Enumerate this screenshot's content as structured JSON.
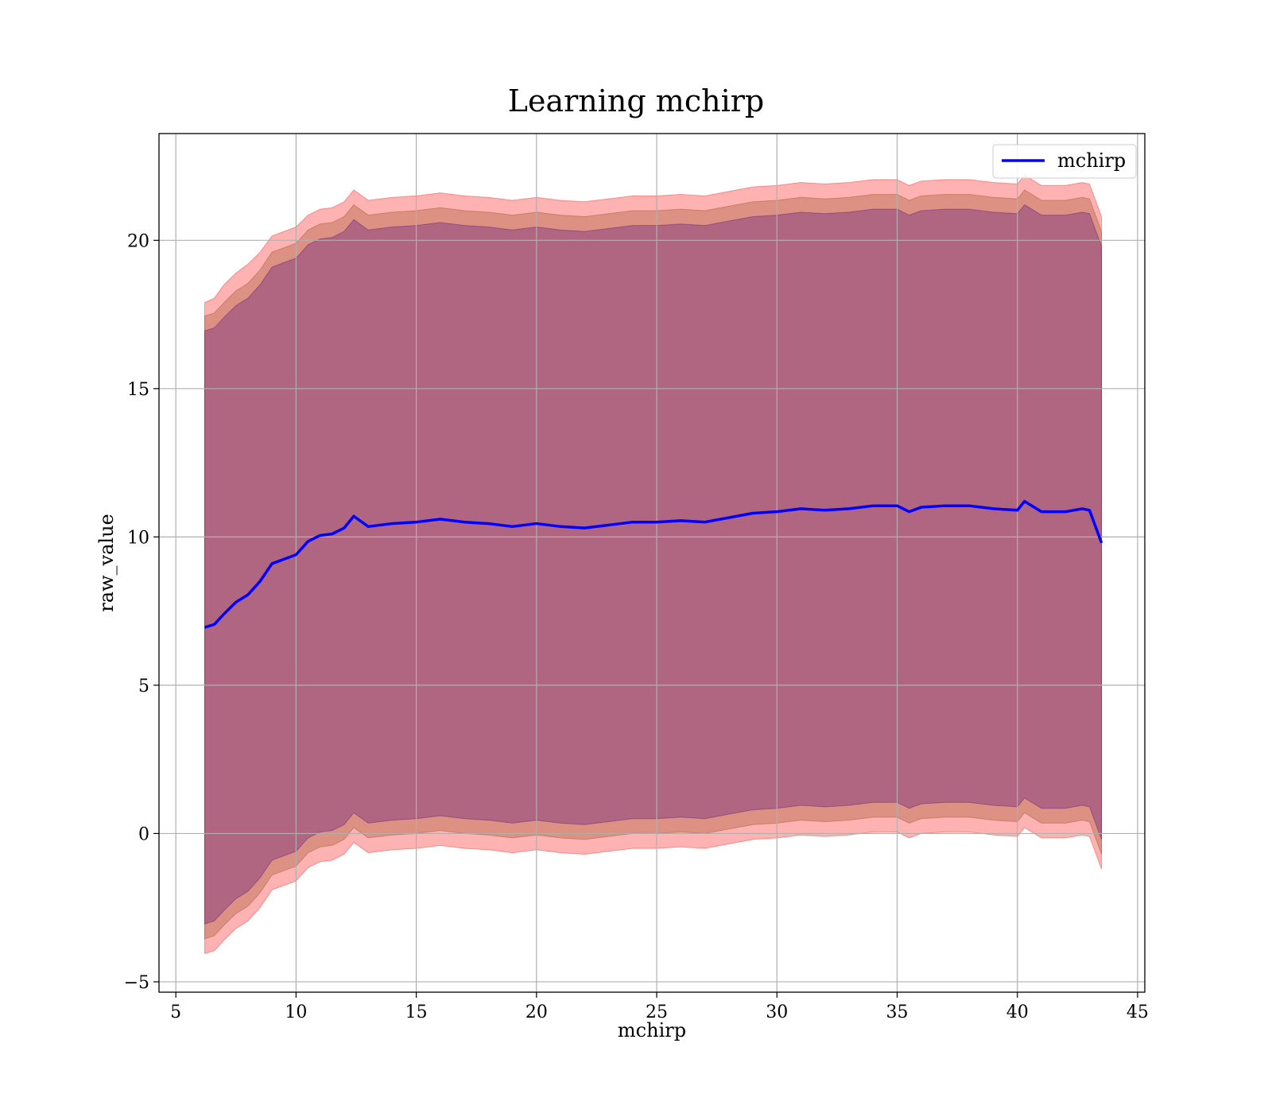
{
  "chart_data": {
    "type": "line",
    "title": "Learning mchirp",
    "xlabel": "mchirp",
    "ylabel": "raw_value",
    "xlim": [
      4.3,
      45.3
    ],
    "ylim": [
      -5.35,
      23.6
    ],
    "x_ticks": [
      5,
      10,
      15,
      20,
      25,
      30,
      35,
      40,
      45
    ],
    "x_tick_labels": [
      "5",
      "10",
      "15",
      "20",
      "25",
      "30",
      "35",
      "40",
      "45"
    ],
    "y_ticks": [
      -5,
      0,
      5,
      10,
      15,
      20
    ],
    "y_tick_labels": [
      "−5",
      "0",
      "5",
      "10",
      "15",
      "20"
    ],
    "grid": true,
    "legend": {
      "position": "top-right",
      "entries": [
        "mchirp"
      ]
    },
    "colors": {
      "line": "#0000ff",
      "band_outer": "#ff0000",
      "band_mid": "#8b4513",
      "band_inner": "#4b0082"
    },
    "series": [
      {
        "name": "mchirp",
        "x": [
          6.2,
          6.6,
          7.0,
          7.5,
          8.0,
          8.5,
          9.0,
          9.5,
          10.0,
          10.5,
          11.0,
          11.5,
          12.0,
          12.4,
          13.0,
          14.0,
          15.0,
          16.0,
          17.0,
          18.0,
          19.0,
          20.0,
          21.0,
          22.0,
          23.0,
          24.0,
          25.0,
          26.0,
          27.0,
          28.0,
          29.0,
          30.0,
          31.0,
          32.0,
          33.0,
          34.0,
          35.0,
          35.5,
          36.0,
          37.0,
          38.0,
          39.0,
          40.0,
          40.3,
          41.0,
          42.0,
          42.7,
          43.0,
          43.5
        ],
        "values": [
          6.95,
          7.05,
          7.4,
          7.8,
          8.05,
          8.5,
          9.1,
          9.25,
          9.4,
          9.85,
          10.05,
          10.1,
          10.3,
          10.7,
          10.35,
          10.45,
          10.5,
          10.6,
          10.5,
          10.45,
          10.35,
          10.45,
          10.35,
          10.3,
          10.4,
          10.5,
          10.5,
          10.55,
          10.5,
          10.65,
          10.8,
          10.85,
          10.95,
          10.9,
          10.95,
          11.05,
          11.05,
          10.85,
          11.0,
          11.05,
          11.05,
          10.95,
          10.9,
          11.2,
          10.85,
          10.85,
          10.95,
          10.9,
          9.8
        ]
      }
    ],
    "bands": [
      {
        "x": [
          6.2,
          6.6,
          7.0,
          7.5,
          8.0,
          8.5,
          9.0,
          9.5,
          10.0,
          10.5,
          11.0,
          11.5,
          12.0,
          12.4,
          13.0,
          14.0,
          15.0,
          16.0,
          17.0,
          18.0,
          19.0,
          20.0,
          21.0,
          22.0,
          23.0,
          24.0,
          25.0,
          26.0,
          27.0,
          28.0,
          29.0,
          30.0,
          31.0,
          32.0,
          33.0,
          34.0,
          35.0,
          35.5,
          36.0,
          37.0,
          38.0,
          39.0,
          40.0,
          40.3,
          41.0,
          42.0,
          42.7,
          43.0,
          43.5
        ],
        "upper": [
          17.9,
          18.05,
          18.5,
          18.9,
          19.2,
          19.6,
          20.15,
          20.3,
          20.45,
          20.85,
          21.05,
          21.1,
          21.3,
          21.7,
          21.35,
          21.45,
          21.5,
          21.6,
          21.5,
          21.45,
          21.35,
          21.45,
          21.35,
          21.3,
          21.4,
          21.5,
          21.5,
          21.55,
          21.5,
          21.65,
          21.8,
          21.85,
          21.95,
          21.9,
          21.95,
          22.05,
          22.05,
          21.85,
          22.0,
          22.05,
          22.05,
          21.95,
          21.9,
          22.2,
          21.85,
          21.85,
          21.95,
          21.9,
          20.8
        ],
        "lower": [
          -4.05,
          -3.95,
          -3.6,
          -3.2,
          -2.95,
          -2.5,
          -1.9,
          -1.75,
          -1.6,
          -1.15,
          -0.95,
          -0.9,
          -0.7,
          -0.3,
          -0.65,
          -0.55,
          -0.5,
          -0.4,
          -0.5,
          -0.55,
          -0.65,
          -0.55,
          -0.65,
          -0.7,
          -0.6,
          -0.5,
          -0.5,
          -0.45,
          -0.5,
          -0.35,
          -0.2,
          -0.15,
          -0.05,
          -0.1,
          -0.05,
          0.05,
          0.05,
          -0.15,
          0.0,
          0.05,
          0.05,
          -0.05,
          -0.1,
          0.2,
          -0.15,
          -0.15,
          -0.05,
          -0.1,
          -1.2
        ]
      },
      {
        "x": [
          6.2,
          6.6,
          7.0,
          7.5,
          8.0,
          8.5,
          9.0,
          9.5,
          10.0,
          10.5,
          11.0,
          11.5,
          12.0,
          12.4,
          13.0,
          14.0,
          15.0,
          16.0,
          17.0,
          18.0,
          19.0,
          20.0,
          21.0,
          22.0,
          23.0,
          24.0,
          25.0,
          26.0,
          27.0,
          28.0,
          29.0,
          30.0,
          31.0,
          32.0,
          33.0,
          34.0,
          35.0,
          35.5,
          36.0,
          37.0,
          38.0,
          39.0,
          40.0,
          40.3,
          41.0,
          42.0,
          42.7,
          43.0,
          43.5
        ],
        "upper": [
          17.45,
          17.55,
          17.9,
          18.3,
          18.55,
          19.0,
          19.6,
          19.75,
          19.9,
          20.35,
          20.55,
          20.6,
          20.8,
          21.2,
          20.85,
          20.95,
          21.0,
          21.1,
          21.0,
          20.95,
          20.85,
          20.95,
          20.85,
          20.8,
          20.9,
          21.0,
          21.0,
          21.05,
          21.0,
          21.15,
          21.3,
          21.35,
          21.45,
          21.4,
          21.45,
          21.55,
          21.55,
          21.35,
          21.5,
          21.55,
          21.55,
          21.45,
          21.4,
          21.7,
          21.35,
          21.35,
          21.45,
          21.4,
          20.3
        ],
        "lower": [
          -3.55,
          -3.45,
          -3.1,
          -2.7,
          -2.45,
          -2.0,
          -1.4,
          -1.25,
          -1.1,
          -0.65,
          -0.45,
          -0.4,
          -0.2,
          0.2,
          -0.15,
          -0.05,
          0.0,
          0.1,
          0.0,
          -0.05,
          -0.15,
          -0.05,
          -0.15,
          -0.2,
          -0.1,
          0.0,
          0.0,
          0.05,
          0.0,
          0.15,
          0.3,
          0.35,
          0.45,
          0.4,
          0.45,
          0.55,
          0.55,
          0.35,
          0.5,
          0.55,
          0.55,
          0.45,
          0.4,
          0.7,
          0.35,
          0.35,
          0.45,
          0.4,
          -0.7
        ]
      },
      {
        "x": [
          6.2,
          6.6,
          7.0,
          7.5,
          8.0,
          8.5,
          9.0,
          9.5,
          10.0,
          10.5,
          11.0,
          11.5,
          12.0,
          12.4,
          13.0,
          14.0,
          15.0,
          16.0,
          17.0,
          18.0,
          19.0,
          20.0,
          21.0,
          22.0,
          23.0,
          24.0,
          25.0,
          26.0,
          27.0,
          28.0,
          29.0,
          30.0,
          31.0,
          32.0,
          33.0,
          34.0,
          35.0,
          35.5,
          36.0,
          37.0,
          38.0,
          39.0,
          40.0,
          40.3,
          41.0,
          42.0,
          42.7,
          43.0,
          43.5
        ],
        "upper": [
          16.95,
          17.05,
          17.4,
          17.8,
          18.05,
          18.5,
          19.1,
          19.25,
          19.4,
          19.85,
          20.05,
          20.1,
          20.3,
          20.7,
          20.35,
          20.45,
          20.5,
          20.6,
          20.5,
          20.45,
          20.35,
          20.45,
          20.35,
          20.3,
          20.4,
          20.5,
          20.5,
          20.55,
          20.5,
          20.65,
          20.8,
          20.85,
          20.95,
          20.9,
          20.95,
          21.05,
          21.05,
          20.85,
          21.0,
          21.05,
          21.05,
          20.95,
          20.9,
          21.2,
          20.85,
          20.85,
          20.95,
          20.9,
          19.8
        ],
        "lower": [
          -3.05,
          -2.95,
          -2.6,
          -2.2,
          -1.95,
          -1.5,
          -0.9,
          -0.75,
          -0.6,
          -0.15,
          0.05,
          0.1,
          0.3,
          0.7,
          0.35,
          0.45,
          0.5,
          0.6,
          0.5,
          0.45,
          0.35,
          0.45,
          0.35,
          0.3,
          0.4,
          0.5,
          0.5,
          0.55,
          0.5,
          0.65,
          0.8,
          0.85,
          0.95,
          0.9,
          0.95,
          1.05,
          1.05,
          0.85,
          1.0,
          1.05,
          1.05,
          0.95,
          0.9,
          1.2,
          0.85,
          0.85,
          0.95,
          0.9,
          -0.2
        ]
      }
    ]
  }
}
